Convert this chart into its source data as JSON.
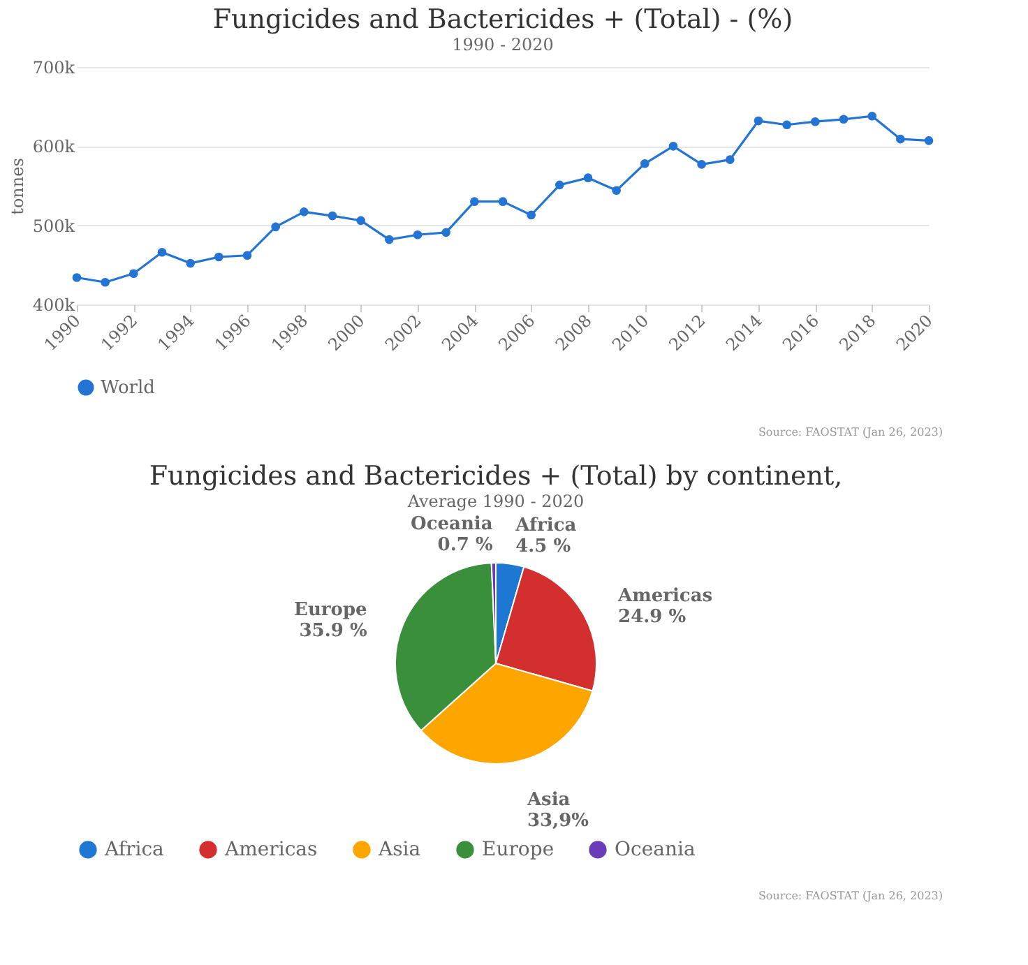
{
  "chart_data": [
    {
      "type": "line",
      "title": "Fungicides and Bactericides + (Total) - (%)",
      "subtitle": "1990 - 2020",
      "ylabel": "tonnes",
      "x": [
        1990,
        1991,
        1992,
        1993,
        1994,
        1995,
        1996,
        1997,
        1998,
        1999,
        2000,
        2001,
        2002,
        2003,
        2004,
        2005,
        2006,
        2007,
        2008,
        2009,
        2010,
        2011,
        2012,
        2013,
        2014,
        2015,
        2016,
        2017,
        2018,
        2019,
        2020
      ],
      "xlim": [
        1990,
        2020
      ],
      "xticks": [
        1990,
        1992,
        1994,
        1996,
        1998,
        2000,
        2002,
        2004,
        2006,
        2008,
        2010,
        2012,
        2014,
        2016,
        2018,
        2020
      ],
      "ylim": [
        400000,
        700000
      ],
      "yticks": [
        {
          "value": 400000,
          "label": "400k"
        },
        {
          "value": 500000,
          "label": "500k"
        },
        {
          "value": 600000,
          "label": "600k"
        },
        {
          "value": 700000,
          "label": "700k"
        }
      ],
      "grid": "y",
      "legend": "bottom",
      "marker": "circle",
      "line_style": "solid",
      "series": [
        {
          "name": "World",
          "color": "#2474d4",
          "values": [
            434000,
            428000,
            439000,
            466000,
            452000,
            460000,
            462000,
            498000,
            517000,
            512000,
            506000,
            482000,
            488000,
            491000,
            530000,
            530000,
            513000,
            551000,
            560000,
            544000,
            578000,
            600000,
            577000,
            583000,
            632000,
            627000,
            631000,
            634000,
            638000,
            609000,
            607000
          ]
        }
      ],
      "annotations": [
        "Source: FAOSTAT (Jan 26, 2023)"
      ]
    },
    {
      "type": "pie",
      "title": "Fungicides and Bactericides + (Total) by continent,",
      "subtitle": "Average 1990 - 2020",
      "categories": [
        "Africa",
        "Americas",
        "Asia",
        "Europe",
        "Oceania"
      ],
      "values": [
        4.5,
        24.9,
        33.9,
        35.9,
        0.7
      ],
      "value_labels": [
        "4.5 %",
        "24.9 %",
        "33,9%",
        "35.9 %",
        "0.7 %"
      ],
      "colors": [
        "#1f77d4",
        "#d42f2f",
        "#ffa500",
        "#3a8f3a",
        "#6a3cb8"
      ],
      "legend": "bottom",
      "annotations": [
        "Source: FAOSTAT (Jan 26, 2023)"
      ]
    }
  ]
}
